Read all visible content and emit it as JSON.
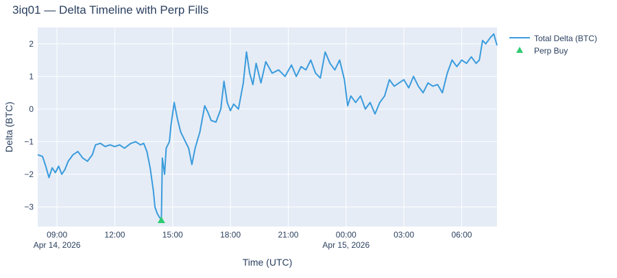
{
  "chart_data": {
    "type": "line",
    "title": "3iq01 — Delta Timeline with Perp Fills",
    "xlabel": "Time (UTC)",
    "ylabel": "Delta (BTC)",
    "x_range": [
      "2026-04-14 08:00",
      "2026-04-15 07:50"
    ],
    "ylim": [
      -3.6,
      2.5
    ],
    "x_ticks": [
      {
        "t": "2026-04-14 09:00",
        "label": "09:00",
        "sublabel": "Apr 14, 2026"
      },
      {
        "t": "2026-04-14 12:00",
        "label": "12:00",
        "sublabel": ""
      },
      {
        "t": "2026-04-14 15:00",
        "label": "15:00",
        "sublabel": ""
      },
      {
        "t": "2026-04-14 18:00",
        "label": "18:00",
        "sublabel": ""
      },
      {
        "t": "2026-04-14 21:00",
        "label": "21:00",
        "sublabel": ""
      },
      {
        "t": "2026-04-15 00:00",
        "label": "00:00",
        "sublabel": "Apr 15, 2026"
      },
      {
        "t": "2026-04-15 03:00",
        "label": "03:00",
        "sublabel": ""
      },
      {
        "t": "2026-04-15 06:00",
        "label": "06:00",
        "sublabel": ""
      }
    ],
    "y_ticks": [
      -3,
      -2,
      -1,
      0,
      1,
      2
    ],
    "y_tick_labels": [
      "−3",
      "−2",
      "−1",
      "0",
      "1",
      "2"
    ],
    "grid": true,
    "legend_placement": "top-right outside",
    "colors": {
      "plot_bg": "#e5ecf6",
      "grid": "#ffffff",
      "line": "#3a9bdc",
      "marker": "#2ecc71",
      "text": "#2a3f5f"
    },
    "series": [
      {
        "name": "Total Delta (BTC)",
        "mode": "line",
        "points": [
          [
            "2026-04-14 08:00",
            -1.4
          ],
          [
            "2026-04-14 08:15",
            -1.45
          ],
          [
            "2026-04-14 08:25",
            -1.75
          ],
          [
            "2026-04-14 08:35",
            -2.1
          ],
          [
            "2026-04-14 08:45",
            -1.8
          ],
          [
            "2026-04-14 08:55",
            -1.95
          ],
          [
            "2026-04-14 09:05",
            -1.75
          ],
          [
            "2026-04-14 09:15",
            -2.0
          ],
          [
            "2026-04-14 09:25",
            -1.85
          ],
          [
            "2026-04-14 09:35",
            -1.6
          ],
          [
            "2026-04-14 09:50",
            -1.4
          ],
          [
            "2026-04-14 10:05",
            -1.3
          ],
          [
            "2026-04-14 10:20",
            -1.5
          ],
          [
            "2026-04-14 10:35",
            -1.6
          ],
          [
            "2026-04-14 10:50",
            -1.4
          ],
          [
            "2026-04-14 11:00",
            -1.1
          ],
          [
            "2026-04-14 11:15",
            -1.05
          ],
          [
            "2026-04-14 11:30",
            -1.15
          ],
          [
            "2026-04-14 11:45",
            -1.1
          ],
          [
            "2026-04-14 12:00",
            -1.15
          ],
          [
            "2026-04-14 12:15",
            -1.1
          ],
          [
            "2026-04-14 12:30",
            -1.2
          ],
          [
            "2026-04-14 12:50",
            -1.05
          ],
          [
            "2026-04-14 13:05",
            -1.0
          ],
          [
            "2026-04-14 13:20",
            -1.1
          ],
          [
            "2026-04-14 13:30",
            -1.05
          ],
          [
            "2026-04-14 13:40",
            -1.3
          ],
          [
            "2026-04-14 13:50",
            -1.8
          ],
          [
            "2026-04-14 14:00",
            -2.5
          ],
          [
            "2026-04-14 14:05",
            -3.0
          ],
          [
            "2026-04-14 14:12",
            -3.2
          ],
          [
            "2026-04-14 14:18",
            -3.3
          ],
          [
            "2026-04-14 14:25",
            -3.4
          ],
          [
            "2026-04-14 14:28",
            -1.5
          ],
          [
            "2026-04-14 14:35",
            -2.0
          ],
          [
            "2026-04-14 14:40",
            -1.2
          ],
          [
            "2026-04-14 14:50",
            -1.0
          ],
          [
            "2026-04-14 14:55",
            -0.5
          ],
          [
            "2026-04-14 15:05",
            0.2
          ],
          [
            "2026-04-14 15:15",
            -0.3
          ],
          [
            "2026-04-14 15:25",
            -0.7
          ],
          [
            "2026-04-14 15:40",
            -1.0
          ],
          [
            "2026-04-14 15:50",
            -1.2
          ],
          [
            "2026-04-14 16:00",
            -1.7
          ],
          [
            "2026-04-14 16:10",
            -1.2
          ],
          [
            "2026-04-14 16:25",
            -0.7
          ],
          [
            "2026-04-14 16:40",
            0.1
          ],
          [
            "2026-04-14 16:50",
            -0.1
          ],
          [
            "2026-04-14 17:00",
            -0.35
          ],
          [
            "2026-04-14 17:15",
            -0.4
          ],
          [
            "2026-04-14 17:30",
            0.0
          ],
          [
            "2026-04-14 17:40",
            0.85
          ],
          [
            "2026-04-14 17:50",
            0.2
          ],
          [
            "2026-04-14 18:00",
            -0.05
          ],
          [
            "2026-04-14 18:10",
            0.15
          ],
          [
            "2026-04-14 18:25",
            0.0
          ],
          [
            "2026-04-14 18:40",
            0.8
          ],
          [
            "2026-04-14 18:50",
            1.75
          ],
          [
            "2026-04-14 19:00",
            1.1
          ],
          [
            "2026-04-14 19:10",
            0.75
          ],
          [
            "2026-04-14 19:20",
            1.4
          ],
          [
            "2026-04-14 19:35",
            0.8
          ],
          [
            "2026-04-14 19:50",
            1.45
          ],
          [
            "2026-04-14 20:10",
            1.1
          ],
          [
            "2026-04-14 20:30",
            1.2
          ],
          [
            "2026-04-14 20:50",
            1.0
          ],
          [
            "2026-04-14 21:10",
            1.35
          ],
          [
            "2026-04-14 21:25",
            1.0
          ],
          [
            "2026-04-14 21:40",
            1.3
          ],
          [
            "2026-04-14 21:55",
            1.2
          ],
          [
            "2026-04-14 22:10",
            1.5
          ],
          [
            "2026-04-14 22:25",
            1.1
          ],
          [
            "2026-04-14 22:40",
            0.95
          ],
          [
            "2026-04-14 22:55",
            1.75
          ],
          [
            "2026-04-14 23:10",
            1.4
          ],
          [
            "2026-04-14 23:25",
            1.2
          ],
          [
            "2026-04-14 23:40",
            1.5
          ],
          [
            "2026-04-14 23:55",
            0.9
          ],
          [
            "2026-04-15 00:05",
            0.1
          ],
          [
            "2026-04-15 00:15",
            0.4
          ],
          [
            "2026-04-15 00:30",
            0.2
          ],
          [
            "2026-04-15 00:45",
            0.4
          ],
          [
            "2026-04-15 01:00",
            0.0
          ],
          [
            "2026-04-15 01:15",
            0.2
          ],
          [
            "2026-04-15 01:30",
            -0.15
          ],
          [
            "2026-04-15 01:45",
            0.2
          ],
          [
            "2026-04-15 02:00",
            0.4
          ],
          [
            "2026-04-15 02:15",
            0.9
          ],
          [
            "2026-04-15 02:30",
            0.7
          ],
          [
            "2026-04-15 02:45",
            0.8
          ],
          [
            "2026-04-15 03:00",
            0.9
          ],
          [
            "2026-04-15 03:15",
            0.65
          ],
          [
            "2026-04-15 03:30",
            1.0
          ],
          [
            "2026-04-15 03:45",
            0.7
          ],
          [
            "2026-04-15 04:00",
            0.5
          ],
          [
            "2026-04-15 04:15",
            0.8
          ],
          [
            "2026-04-15 04:30",
            0.7
          ],
          [
            "2026-04-15 04:45",
            0.75
          ],
          [
            "2026-04-15 05:00",
            0.5
          ],
          [
            "2026-04-15 05:15",
            1.1
          ],
          [
            "2026-04-15 05:30",
            1.5
          ],
          [
            "2026-04-15 05:45",
            1.3
          ],
          [
            "2026-04-15 06:00",
            1.5
          ],
          [
            "2026-04-15 06:15",
            1.4
          ],
          [
            "2026-04-15 06:30",
            1.6
          ],
          [
            "2026-04-15 06:45",
            1.4
          ],
          [
            "2026-04-15 06:55",
            1.5
          ],
          [
            "2026-04-15 07:05",
            2.1
          ],
          [
            "2026-04-15 07:15",
            2.0
          ],
          [
            "2026-04-15 07:30",
            2.2
          ],
          [
            "2026-04-15 07:40",
            2.3
          ],
          [
            "2026-04-15 07:50",
            1.95
          ]
        ]
      },
      {
        "name": "Perp Buy",
        "mode": "markers",
        "marker": "triangle-up",
        "points": [
          [
            "2026-04-14 14:25",
            -3.4
          ]
        ]
      }
    ]
  }
}
